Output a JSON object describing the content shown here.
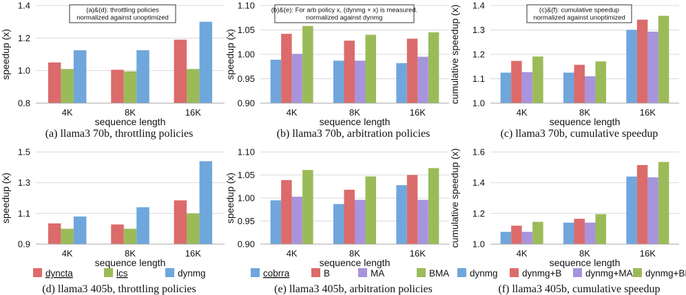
{
  "colors": {
    "red": "#DC6B6B",
    "green": "#9BBB59",
    "blue": "#6FA6DC",
    "purple": "#A894DC",
    "grid": "#D9D9D9",
    "axis": "#A6A6A6"
  },
  "chart_data": [
    {
      "id": "a",
      "type": "bar",
      "ylabel": "speedup (x)",
      "xlabel": "sequence length",
      "categories": [
        "4K",
        "8K",
        "16K"
      ],
      "ylim": [
        0.8,
        1.4
      ],
      "yticks": [
        "0.8",
        "1.0",
        "1.2",
        "1.4"
      ],
      "caption": "(a) llama3 70b, throttling policies",
      "annotation": [
        "(a)&(d): throttling policies",
        "normalized against unoptimized"
      ],
      "series": [
        {
          "name": "dyncta",
          "color": "#DC6B6B",
          "values": [
            1.05,
            1.005,
            1.19
          ]
        },
        {
          "name": "lcs",
          "color": "#9BBB59",
          "values": [
            1.01,
            0.995,
            1.01
          ]
        },
        {
          "name": "dynmg",
          "color": "#6FA6DC",
          "values": [
            1.125,
            1.125,
            1.3
          ]
        }
      ]
    },
    {
      "id": "b",
      "type": "bar",
      "ylabel": "speedup (x)",
      "xlabel": "sequence length",
      "categories": [
        "4K",
        "8K",
        "16K"
      ],
      "ylim": [
        0.9,
        1.1
      ],
      "yticks": [
        "0.90",
        "0.95",
        "1.00",
        "1.05",
        "1.10"
      ],
      "caption": "(b) llama3 70b, arbitration policies",
      "annotation": [
        "(b)&(e): For arb policy x, (dynmg + x) is measured.",
        "normalized against dynmg"
      ],
      "series": [
        {
          "name": "cobrra",
          "color": "#6FA6DC",
          "values": [
            0.989,
            0.987,
            0.982
          ]
        },
        {
          "name": "B",
          "color": "#DC6B6B",
          "values": [
            1.042,
            1.028,
            1.032
          ]
        },
        {
          "name": "MA",
          "color": "#A894DC",
          "values": [
            1.001,
            0.987,
            0.995
          ]
        },
        {
          "name": "BMA",
          "color": "#9BBB59",
          "values": [
            1.058,
            1.04,
            1.045
          ]
        }
      ]
    },
    {
      "id": "c",
      "type": "bar",
      "ylabel": "cumulative speedup (x)",
      "xlabel": "sequence length",
      "categories": [
        "4K",
        "8K",
        "16K"
      ],
      "ylim": [
        1.0,
        1.4
      ],
      "yticks": [
        "1.0",
        "1.1",
        "1.2",
        "1.3",
        "1.4"
      ],
      "caption": "(c) llama3 70b, cumulative speedup",
      "annotation": [
        "(c)&(f): cumulative speedup",
        "normalized against unoptimized"
      ],
      "series": [
        {
          "name": "dynmg",
          "color": "#6FA6DC",
          "values": [
            1.125,
            1.125,
            1.3
          ]
        },
        {
          "name": "dynmg+B",
          "color": "#DC6B6B",
          "values": [
            1.173,
            1.157,
            1.342
          ]
        },
        {
          "name": "dynmg+MA",
          "color": "#A894DC",
          "values": [
            1.127,
            1.11,
            1.293
          ]
        },
        {
          "name": "dynmg+BMA",
          "color": "#9BBB59",
          "values": [
            1.191,
            1.171,
            1.358
          ]
        }
      ]
    },
    {
      "id": "d",
      "type": "bar",
      "ylabel": "speedup (x)",
      "xlabel": "sequence length",
      "categories": [
        "4K",
        "8K",
        "16K"
      ],
      "ylim": [
        0.9,
        1.5
      ],
      "yticks": [
        "0.9",
        "1.1",
        "1.3",
        "1.5"
      ],
      "caption": "(d) llama3 405b, throttling policies",
      "series": [
        {
          "name": "dyncta",
          "color": "#DC6B6B",
          "values": [
            1.035,
            1.028,
            1.185
          ]
        },
        {
          "name": "lcs",
          "color": "#9BBB59",
          "values": [
            1.0,
            1.0,
            1.1
          ]
        },
        {
          "name": "dynmg",
          "color": "#6FA6DC",
          "values": [
            1.08,
            1.14,
            1.44
          ]
        }
      ]
    },
    {
      "id": "e",
      "type": "bar",
      "ylabel": "speedup (x)",
      "xlabel": "sequence length",
      "categories": [
        "4K",
        "8K",
        "16K"
      ],
      "ylim": [
        0.9,
        1.1
      ],
      "yticks": [
        "0.90",
        "0.95",
        "1.00",
        "1.05",
        "1.10"
      ],
      "caption": "(e) llama3 405b, arbitration policies",
      "series": [
        {
          "name": "cobrra",
          "color": "#6FA6DC",
          "values": [
            0.995,
            0.987,
            1.028
          ]
        },
        {
          "name": "B",
          "color": "#DC6B6B",
          "values": [
            1.039,
            1.018,
            1.05
          ]
        },
        {
          "name": "MA",
          "color": "#A894DC",
          "values": [
            1.003,
            0.996,
            0.996
          ]
        },
        {
          "name": "BMA",
          "color": "#9BBB59",
          "values": [
            1.061,
            1.047,
            1.065
          ]
        }
      ]
    },
    {
      "id": "f",
      "type": "bar",
      "ylabel": "cumulative speedup (x)",
      "xlabel": "sequence length",
      "categories": [
        "4K",
        "8K",
        "16K"
      ],
      "ylim": [
        1.0,
        1.6
      ],
      "yticks": [
        "1.0",
        "1.2",
        "1.4",
        "1.6"
      ],
      "caption": "(f) llama3 405b, cumulative speedup",
      "series": [
        {
          "name": "dynmg",
          "color": "#6FA6DC",
          "values": [
            1.08,
            1.14,
            1.44
          ]
        },
        {
          "name": "dynmg+B",
          "color": "#DC6B6B",
          "values": [
            1.12,
            1.165,
            1.515
          ]
        },
        {
          "name": "dynmg+MA",
          "color": "#A894DC",
          "values": [
            1.08,
            1.14,
            1.435
          ]
        },
        {
          "name": "dynmg+BMA",
          "color": "#9BBB59",
          "values": [
            1.145,
            1.195,
            1.535
          ]
        }
      ]
    }
  ],
  "legends": {
    "throttling": [
      {
        "label": "dyncta",
        "color": "#DC6B6B",
        "underline": true
      },
      {
        "label": "lcs",
        "color": "#9BBB59",
        "underline": true
      },
      {
        "label": "dynmg",
        "color": "#6FA6DC",
        "underline": false
      }
    ],
    "arbitration": [
      {
        "label": "cobrra",
        "color": "#6FA6DC",
        "underline": true
      },
      {
        "label": "B",
        "color": "#DC6B6B",
        "underline": false
      },
      {
        "label": "MA",
        "color": "#A894DC",
        "underline": false
      },
      {
        "label": "BMA",
        "color": "#9BBB59",
        "underline": false
      }
    ],
    "cumulative": [
      {
        "label": "dynmg",
        "color": "#6FA6DC",
        "underline": false
      },
      {
        "label": "dynmg+B",
        "color": "#DC6B6B",
        "underline": false
      },
      {
        "label": "dynmg+MA",
        "color": "#A894DC",
        "underline": false
      },
      {
        "label": "dynmg+BMA",
        "color": "#9BBB59",
        "underline": false
      }
    ]
  }
}
